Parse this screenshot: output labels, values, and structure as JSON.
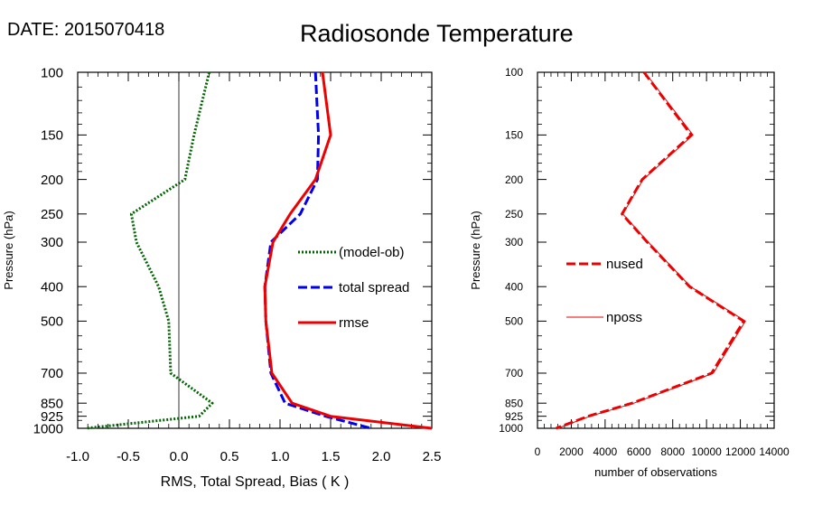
{
  "header": {
    "date_label": "DATE: 2015070418",
    "title": "Radiosonde Temperature"
  },
  "chart_data": [
    {
      "type": "line",
      "xlabel": "RMS, Total Spread, Bias ( K )",
      "ylabel": "Pressure (hPa)",
      "xlim": [
        -1.0,
        2.5
      ],
      "ylim": [
        1000,
        100
      ],
      "y_scale": "log",
      "x_ticks": [
        "-1.0",
        "-0.5",
        "0.0",
        "0.5",
        "1.0",
        "1.5",
        "2.0",
        "2.5"
      ],
      "y_ticks": [
        "100",
        "150",
        "200",
        "250",
        "300",
        "400",
        "500",
        "700",
        "850",
        "925",
        "1000"
      ],
      "zero_line": true,
      "legend_position": "center-right",
      "series": [
        {
          "name": "(model-ob)",
          "color": "#006400",
          "style": "dotted",
          "points": [
            [
              0.3,
              100
            ],
            [
              0.15,
              150
            ],
            [
              0.06,
              200
            ],
            [
              -0.47,
              250
            ],
            [
              -0.42,
              300
            ],
            [
              -0.2,
              400
            ],
            [
              -0.1,
              500
            ],
            [
              -0.08,
              700
            ],
            [
              0.33,
              850
            ],
            [
              0.2,
              925
            ],
            [
              -0.92,
              1000
            ]
          ]
        },
        {
          "name": "total spread",
          "color": "#0000ee",
          "style": "dashed",
          "points": [
            [
              1.35,
              100
            ],
            [
              1.38,
              150
            ],
            [
              1.37,
              200
            ],
            [
              1.2,
              250
            ],
            [
              0.91,
              300
            ],
            [
              0.85,
              400
            ],
            [
              0.86,
              500
            ],
            [
              0.91,
              700
            ],
            [
              1.05,
              850
            ],
            [
              1.45,
              925
            ],
            [
              1.9,
              1000
            ]
          ]
        },
        {
          "name": "rmse",
          "color": "#ee0000",
          "style": "solid",
          "points": [
            [
              1.42,
              100
            ],
            [
              1.5,
              150
            ],
            [
              1.35,
              200
            ],
            [
              1.1,
              250
            ],
            [
              0.93,
              300
            ],
            [
              0.85,
              400
            ],
            [
              0.86,
              500
            ],
            [
              0.92,
              700
            ],
            [
              1.12,
              850
            ],
            [
              1.5,
              925
            ],
            [
              2.5,
              1000
            ]
          ]
        }
      ]
    },
    {
      "type": "line",
      "xlabel": "number of observations",
      "ylabel": "Pressure (hPa)",
      "xlim": [
        0,
        14000
      ],
      "ylim": [
        1000,
        100
      ],
      "y_scale": "log",
      "x_ticks": [
        "0",
        "2000",
        "4000",
        "6000",
        "8000",
        "10000",
        "12000",
        "14000"
      ],
      "y_ticks": [
        "100",
        "150",
        "200",
        "250",
        "300",
        "400",
        "500",
        "700",
        "850",
        "925",
        "1000"
      ],
      "legend_position": "center-left",
      "series": [
        {
          "name": "nused",
          "color": "#ee0000",
          "style": "dashed",
          "points": [
            [
              6300,
              100
            ],
            [
              9100,
              150
            ],
            [
              6200,
              200
            ],
            [
              5000,
              250
            ],
            [
              6500,
              300
            ],
            [
              9000,
              400
            ],
            [
              12200,
              500
            ],
            [
              10300,
              700
            ],
            [
              5600,
              850
            ],
            [
              3000,
              925
            ],
            [
              1100,
              1000
            ]
          ]
        },
        {
          "name": "nposs",
          "color": "#ee0000",
          "style": "thin",
          "points": [
            [
              6350,
              100
            ],
            [
              9200,
              150
            ],
            [
              6250,
              200
            ],
            [
              5050,
              250
            ],
            [
              6550,
              300
            ],
            [
              9050,
              400
            ],
            [
              12300,
              500
            ],
            [
              10400,
              700
            ],
            [
              5700,
              850
            ],
            [
              3100,
              925
            ],
            [
              1200,
              1000
            ]
          ]
        }
      ]
    }
  ]
}
